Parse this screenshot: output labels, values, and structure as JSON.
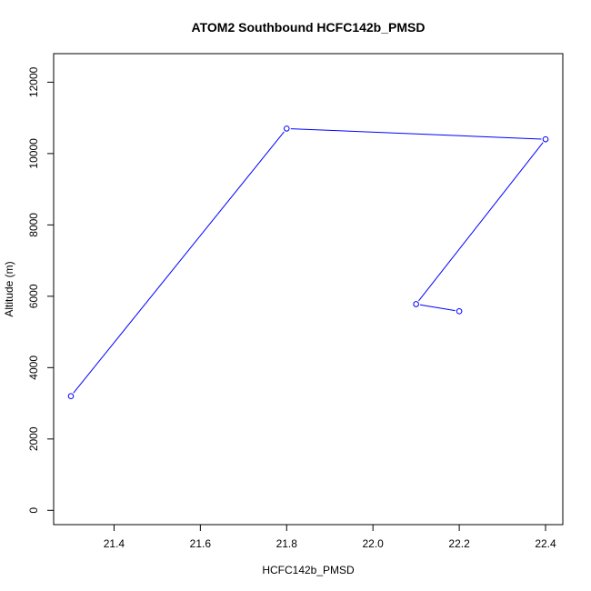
{
  "chart_data": {
    "type": "line",
    "title": "ATOM2 Southbound HCFC142b_PMSD",
    "xlabel": "HCFC142b_PMSD",
    "ylabel": "Altitude (m)",
    "xlim": [
      21.26,
      22.44
    ],
    "ylim": [
      -400,
      12800
    ],
    "x_ticks": [
      21.4,
      21.6,
      21.8,
      22.0,
      22.2,
      22.4
    ],
    "x_tick_labels": [
      "21.4",
      "21.6",
      "21.8",
      "22.0",
      "22.2",
      "22.4"
    ],
    "y_ticks": [
      0,
      2000,
      4000,
      6000,
      8000,
      10000,
      12000
    ],
    "y_tick_labels": [
      "0",
      "2000",
      "4000",
      "6000",
      "8000",
      "10000",
      "12000"
    ],
    "grid": false,
    "series": [
      {
        "color": "#0000ff",
        "marker": "open-circle",
        "points": [
          {
            "x": 21.3,
            "y": 3200
          },
          {
            "x": 21.8,
            "y": 10700
          },
          {
            "x": 22.4,
            "y": 10400
          },
          {
            "x": 22.1,
            "y": 5780
          },
          {
            "x": 22.2,
            "y": 5580
          }
        ]
      }
    ]
  }
}
